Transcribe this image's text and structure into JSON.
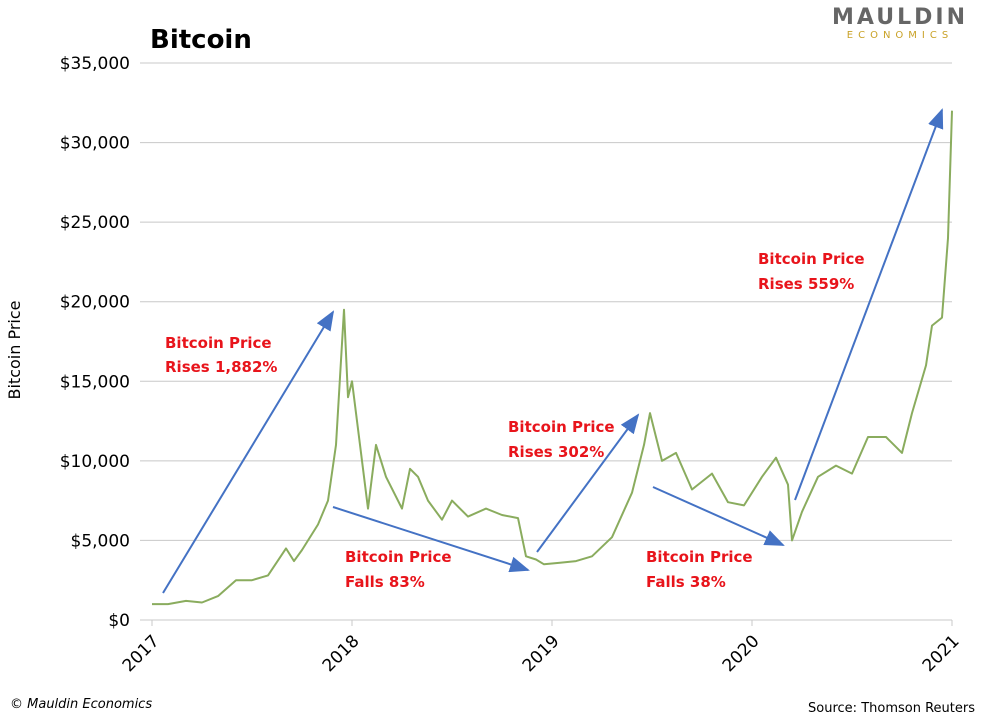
{
  "chart_data": {
    "type": "line",
    "title": "Bitcoin",
    "y_label": "Bitcoin Price",
    "color": "#8aac5e",
    "x": [
      2017.0,
      2017.08,
      2017.17,
      2017.25,
      2017.33,
      2017.42,
      2017.5,
      2017.58,
      2017.67,
      2017.71,
      2017.75,
      2017.83,
      2017.88,
      2017.92,
      2017.96,
      2017.98,
      2018.0,
      2018.04,
      2018.08,
      2018.12,
      2018.17,
      2018.25,
      2018.29,
      2018.33,
      2018.38,
      2018.45,
      2018.5,
      2018.58,
      2018.67,
      2018.75,
      2018.83,
      2018.87,
      2018.92,
      2018.96,
      2019.04,
      2019.12,
      2019.2,
      2019.3,
      2019.4,
      2019.46,
      2019.49,
      2019.55,
      2019.62,
      2019.7,
      2019.8,
      2019.88,
      2019.96,
      2020.05,
      2020.12,
      2020.18,
      2020.2,
      2020.25,
      2020.33,
      2020.42,
      2020.5,
      2020.58,
      2020.67,
      2020.75,
      2020.8,
      2020.87,
      2020.9,
      2020.95,
      2020.98,
      2021.0
    ],
    "values": [
      1000,
      1000,
      1200,
      1100,
      1500,
      2500,
      2500,
      2800,
      4500,
      3700,
      4400,
      6000,
      7500,
      11000,
      19500,
      14000,
      15000,
      11000,
      7000,
      11000,
      9000,
      7000,
      9500,
      9000,
      7500,
      6300,
      7500,
      6500,
      7000,
      6600,
      6400,
      4000,
      3800,
      3500,
      3600,
      3700,
      4000,
      5200,
      8000,
      11000,
      13000,
      10000,
      10500,
      8200,
      9200,
      7400,
      7200,
      9000,
      10200,
      8500,
      5000,
      6800,
      9000,
      9700,
      9200,
      11500,
      11500,
      10500,
      13000,
      16000,
      18500,
      19000,
      24000,
      32000
    ],
    "xlim": [
      2017,
      2021
    ],
    "xticks": [
      2017,
      2018,
      2019,
      2020,
      2021
    ],
    "ylim": [
      0,
      35000
    ],
    "yticks": [
      {
        "value": 0,
        "label": "$0"
      },
      {
        "value": 5000,
        "label": "$5,000"
      },
      {
        "value": 10000,
        "label": "$10,000"
      },
      {
        "value": 15000,
        "label": "$15,000"
      },
      {
        "value": 20000,
        "label": "$20,000"
      },
      {
        "value": 25000,
        "label": "$25,000"
      },
      {
        "value": 30000,
        "label": "$30,000"
      },
      {
        "value": 35000,
        "label": "$35,000"
      }
    ],
    "grid": true,
    "annotations": [
      [
        "Bitcoin Price",
        "Rises 1,882%"
      ],
      [
        "Bitcoin Price",
        "Falls 83%"
      ],
      [
        "Bitcoin Price",
        "Rises 302%"
      ],
      [
        "Bitcoin Price",
        "Falls 38%"
      ],
      [
        "Bitcoin Price",
        "Rises 559%"
      ]
    ]
  },
  "logo": {
    "name": "MAULDIN",
    "tagline": "ECONOMICS"
  },
  "footer": {
    "copyright": "© Mauldin Economics",
    "source": "Source: Thomson Reuters"
  }
}
